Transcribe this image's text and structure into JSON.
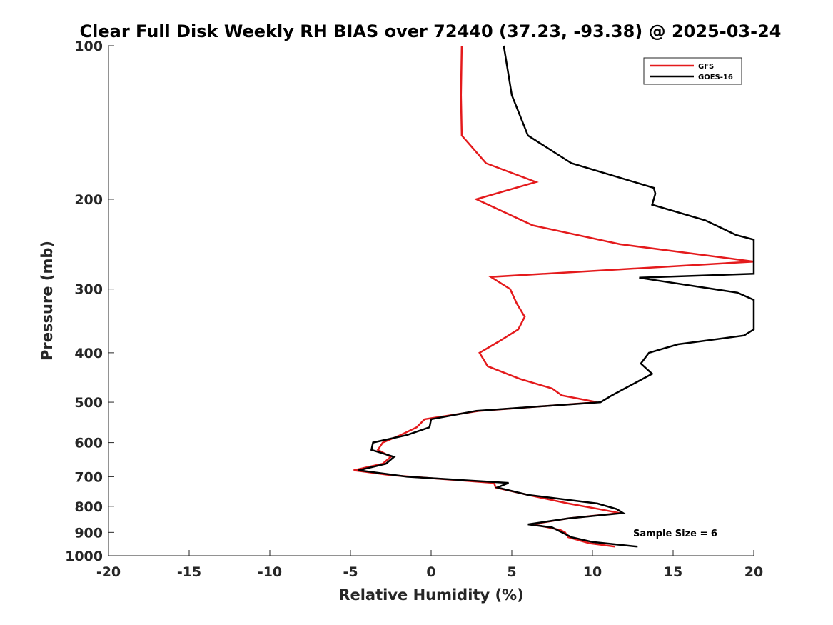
{
  "chart_data": {
    "type": "line",
    "title": "Clear Full Disk Weekly RH BIAS over 72440 (37.23, -93.38) @ 2025-03-24",
    "xlabel": "Relative Humidity (%)",
    "ylabel": "Pressure (mb)",
    "xlim": [
      -20,
      20
    ],
    "ylim": [
      100,
      1000
    ],
    "y_scale": "log",
    "y_reversed": true,
    "x_ticks": [
      -20,
      -15,
      -10,
      -5,
      0,
      5,
      10,
      15,
      20
    ],
    "x_tick_labels": [
      "-20",
      "-15",
      "-10",
      "-5",
      "0",
      "5",
      "10",
      "15",
      "20"
    ],
    "y_ticks": [
      100,
      200,
      300,
      400,
      500,
      600,
      700,
      800,
      900,
      1000
    ],
    "y_tick_labels": [
      "100",
      "200",
      "300",
      "400",
      "500",
      "600",
      "700",
      "800",
      "900",
      "1000"
    ],
    "grid": false,
    "legend_position": "top-right",
    "annotation": "Sample Size = 6",
    "series": [
      {
        "name": "GFS",
        "color": "#e41a1c",
        "points": [
          [
            1.9,
            100
          ],
          [
            1.85,
            125
          ],
          [
            1.9,
            150
          ],
          [
            3.4,
            170
          ],
          [
            6.5,
            185
          ],
          [
            2.8,
            200
          ],
          [
            6.3,
            225
          ],
          [
            11.7,
            245
          ],
          [
            20.0,
            265
          ],
          [
            3.7,
            284
          ],
          [
            4.9,
            300
          ],
          [
            5.3,
            320
          ],
          [
            5.8,
            340
          ],
          [
            5.4,
            360
          ],
          [
            4.2,
            380
          ],
          [
            3.0,
            400
          ],
          [
            3.5,
            425
          ],
          [
            5.5,
            450
          ],
          [
            7.5,
            470
          ],
          [
            8.1,
            485
          ],
          [
            10.3,
            500
          ],
          [
            3.0,
            520
          ],
          [
            -0.4,
            540
          ],
          [
            -0.9,
            560
          ],
          [
            -1.9,
            580
          ],
          [
            -3.0,
            600
          ],
          [
            -3.3,
            620
          ],
          [
            -2.5,
            640
          ],
          [
            -3.0,
            660
          ],
          [
            -4.8,
            680
          ],
          [
            -2.5,
            695
          ],
          [
            3.9,
            720
          ],
          [
            4.0,
            735
          ],
          [
            6.0,
            760
          ],
          [
            8.5,
            790
          ],
          [
            10.4,
            810
          ],
          [
            11.7,
            825
          ],
          [
            8.5,
            845
          ],
          [
            6.5,
            865
          ],
          [
            6.5,
            870
          ],
          [
            8.0,
            890
          ],
          [
            8.3,
            900
          ],
          [
            8.5,
            920
          ],
          [
            9.8,
            945
          ],
          [
            11.4,
            960
          ]
        ]
      },
      {
        "name": "GOES-16",
        "color": "#000000",
        "points": [
          [
            4.5,
            100
          ],
          [
            5.0,
            125
          ],
          [
            6.0,
            150
          ],
          [
            8.7,
            170
          ],
          [
            13.8,
            190
          ],
          [
            13.9,
            195
          ],
          [
            13.7,
            205
          ],
          [
            17.0,
            220
          ],
          [
            18.9,
            235
          ],
          [
            20.0,
            240
          ],
          [
            20.0,
            280
          ],
          [
            12.9,
            285
          ],
          [
            19.0,
            305
          ],
          [
            20.0,
            315
          ],
          [
            20.0,
            360
          ],
          [
            19.4,
            370
          ],
          [
            15.3,
            385
          ],
          [
            13.5,
            400
          ],
          [
            13.0,
            420
          ],
          [
            13.7,
            440
          ],
          [
            12.0,
            470
          ],
          [
            11.2,
            485
          ],
          [
            10.5,
            500
          ],
          [
            2.8,
            520
          ],
          [
            0.0,
            540
          ],
          [
            -0.1,
            560
          ],
          [
            -1.5,
            580
          ],
          [
            -3.6,
            600
          ],
          [
            -3.7,
            620
          ],
          [
            -2.3,
            640
          ],
          [
            -2.8,
            660
          ],
          [
            -4.5,
            680
          ],
          [
            -1.5,
            700
          ],
          [
            4.8,
            720
          ],
          [
            4.1,
            735
          ],
          [
            6.0,
            760
          ],
          [
            10.3,
            790
          ],
          [
            11.5,
            810
          ],
          [
            11.9,
            825
          ],
          [
            8.5,
            845
          ],
          [
            6.0,
            868
          ],
          [
            7.5,
            880
          ],
          [
            8.1,
            900
          ],
          [
            8.7,
            920
          ],
          [
            10.0,
            940
          ],
          [
            12.8,
            960
          ]
        ]
      }
    ]
  }
}
